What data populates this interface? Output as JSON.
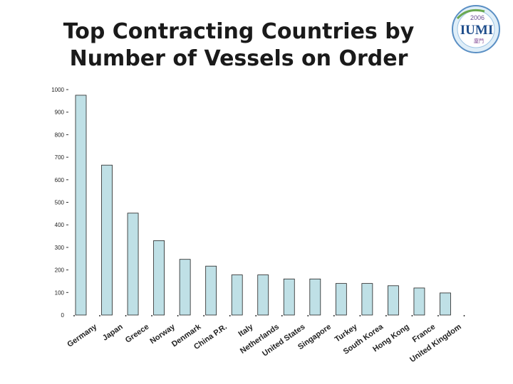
{
  "title_lines": [
    "Top Contracting Countries by",
    "Number of Vessels on Order"
  ],
  "logo": {
    "year": "2006",
    "text": "IUMI",
    "tagline": "廈門"
  },
  "colors": {
    "bar": "#bfe0e6",
    "bar_edge": "#222222",
    "axis": "#333333",
    "title": "#1a1a1a"
  },
  "chart_data": {
    "type": "bar",
    "title": "Top Contracting Countries by Number of Vessels on Order",
    "xlabel": "",
    "ylabel": "",
    "ylim": [
      0,
      1000
    ],
    "yticks": [
      0,
      100,
      200,
      300,
      400,
      500,
      600,
      700,
      800,
      900,
      1000
    ],
    "ytick_labels": [
      "0",
      "100",
      "200",
      "300",
      "400",
      "500",
      "600",
      "700",
      "800",
      "900",
      "1000"
    ],
    "grid": false,
    "categories": [
      "Germany",
      "Japan",
      "Greece",
      "Norway",
      "Denmark",
      "China P.R.",
      "Italy",
      "Netherlands",
      "United States",
      "Singapore",
      "Turkey",
      "South Korea",
      "Hong Kong",
      "France",
      "United Kingdom"
    ],
    "values": [
      975,
      665,
      452,
      330,
      247,
      217,
      178,
      178,
      160,
      160,
      140,
      140,
      130,
      120,
      98
    ]
  }
}
